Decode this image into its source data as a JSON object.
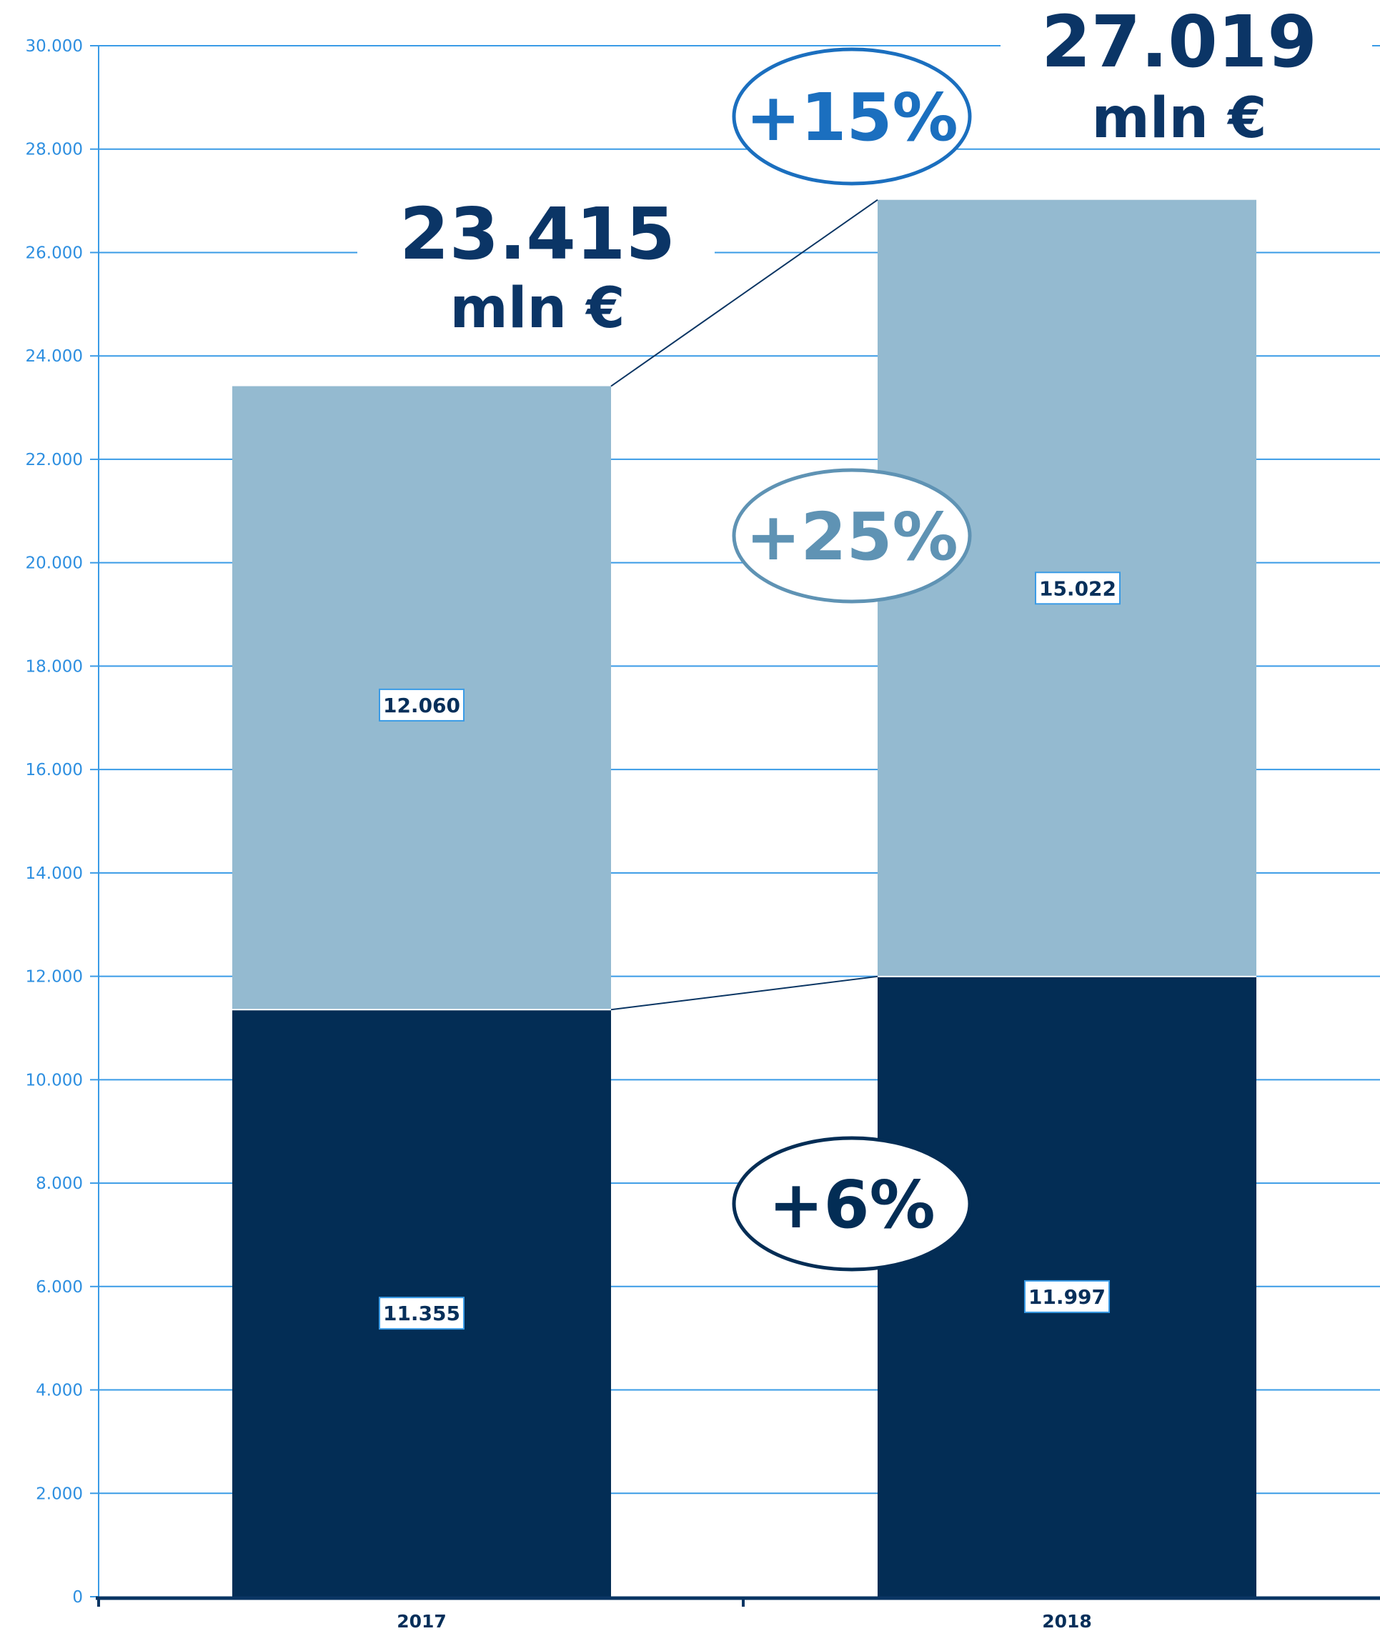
{
  "chart_data": {
    "type": "bar",
    "stacked": true,
    "categories": [
      "2017",
      "2018"
    ],
    "series": [
      {
        "values": [
          11355,
          11997
        ],
        "color": "#032d55"
      },
      {
        "values": [
          12060,
          15022
        ],
        "color": "#94bad0"
      }
    ],
    "value_labels": [
      [
        "11.355",
        "11.997"
      ],
      [
        "12.060",
        "15.022"
      ]
    ],
    "totals": [
      {
        "value": "23.415",
        "unit": "mln €"
      },
      {
        "value": "27.019",
        "unit": "mln €"
      }
    ],
    "growth": [
      {
        "label": "+15%",
        "applies_to": "total",
        "color": "#1b6fbf"
      },
      {
        "label": "+25%",
        "applies_to": "series-2",
        "color": "#5f93b4"
      },
      {
        "label": "+6%",
        "applies_to": "series-1",
        "color": "#032d55"
      }
    ],
    "ylim": [
      0,
      30000
    ],
    "yticks": [
      0,
      2000,
      4000,
      6000,
      8000,
      10000,
      12000,
      14000,
      16000,
      18000,
      20000,
      22000,
      24000,
      26000,
      28000,
      30000
    ],
    "ytick_labels": [
      "0",
      "2.000",
      "4.000",
      "6.000",
      "8.000",
      "10.000",
      "12.000",
      "14.000",
      "16.000",
      "18.000",
      "20.000",
      "22.000",
      "24.000",
      "26.000",
      "28.000",
      "30.000"
    ],
    "grid": true,
    "colors": {
      "grid": "#3a9be6",
      "axis": "#0a3563",
      "tick_label": "#2e8fe0",
      "label_border": "#3a9be6"
    }
  }
}
